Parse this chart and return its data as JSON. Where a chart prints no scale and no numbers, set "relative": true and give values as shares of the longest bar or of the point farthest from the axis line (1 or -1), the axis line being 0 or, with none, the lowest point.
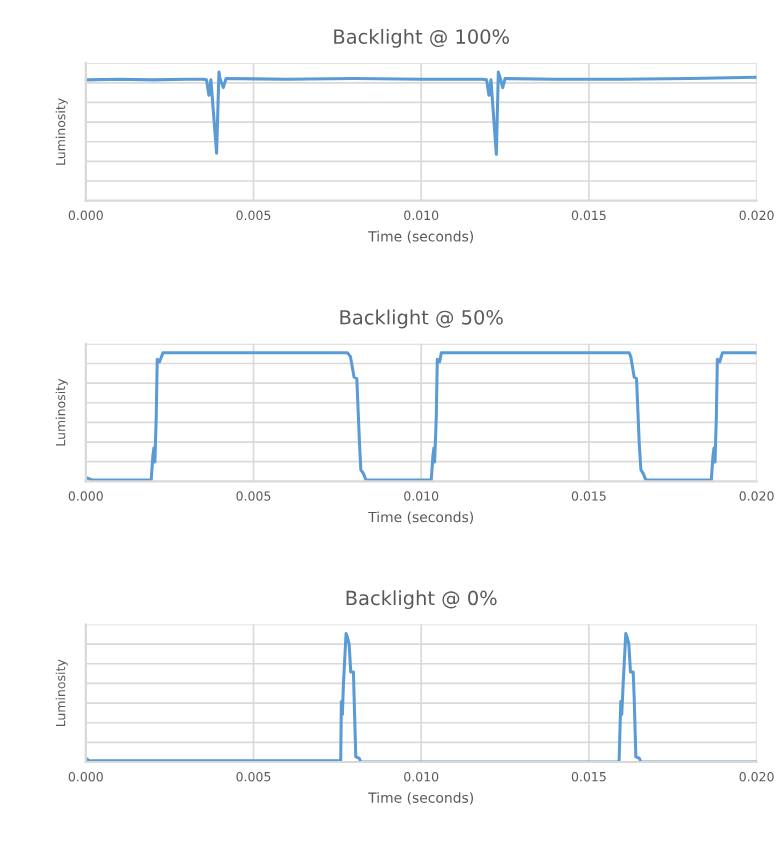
{
  "chart_data": [
    {
      "type": "line",
      "title": "Backlight @ 100%",
      "xlabel": "Time (seconds)",
      "ylabel": "Luminosity",
      "relative": true,
      "grid": true,
      "color": "#5b9bd5",
      "xlim": [
        0,
        0.02
      ],
      "xticks": [
        {
          "value": 0,
          "label": "0.000"
        },
        {
          "value": 0.005,
          "label": "0.005"
        },
        {
          "value": 0.01,
          "label": "0.010"
        },
        {
          "value": 0.015,
          "label": "0.015"
        },
        {
          "value": 0.02,
          "label": "0.020"
        }
      ],
      "x": [
        0,
        0.001,
        0.002,
        0.003,
        0.0035,
        0.0036,
        0.00367,
        0.00373,
        0.0039,
        0.00397,
        0.004,
        0.0041,
        0.00418,
        0.006,
        0.008,
        0.01,
        0.0118,
        0.01195,
        0.01202,
        0.01208,
        0.01224,
        0.0123,
        0.01236,
        0.01243,
        0.0125,
        0.014,
        0.016,
        0.018,
        0.02
      ],
      "values": [
        0.94,
        0.945,
        0.94,
        0.945,
        0.945,
        0.94,
        0.82,
        0.94,
        0.37,
        1.0,
        0.95,
        0.88,
        0.95,
        0.945,
        0.95,
        0.945,
        0.945,
        0.94,
        0.82,
        0.94,
        0.36,
        1.0,
        0.95,
        0.88,
        0.95,
        0.945,
        0.945,
        0.95,
        0.96
      ]
    },
    {
      "type": "line",
      "title": "Backlight @ 50%",
      "xlabel": "Time (seconds)",
      "ylabel": "Luminosity",
      "relative": true,
      "grid": true,
      "color": "#5b9bd5",
      "xlim": [
        0,
        0.02
      ],
      "xticks": [
        {
          "value": 0,
          "label": "0.000"
        },
        {
          "value": 0.005,
          "label": "0.005"
        },
        {
          "value": 0.01,
          "label": "0.010"
        },
        {
          "value": 0.015,
          "label": "0.015"
        },
        {
          "value": 0.02,
          "label": "0.020"
        }
      ],
      "x": [
        0,
        0.0002,
        0.001,
        0.00195,
        0.002,
        0.00203,
        0.00206,
        0.0021,
        0.00213,
        0.0022,
        0.0023,
        0.004,
        0.006,
        0.0078,
        0.00789,
        0.008,
        0.00808,
        0.00816,
        0.0082,
        0.00828,
        0.00835,
        0.0095,
        0.0103,
        0.01035,
        0.01038,
        0.0104,
        0.01045,
        0.01048,
        0.01055,
        0.0106,
        0.013,
        0.0162,
        0.01625,
        0.01635,
        0.01642,
        0.0165,
        0.01655,
        0.01662,
        0.0167,
        0.018,
        0.01865,
        0.0187,
        0.01873,
        0.01876,
        0.0188,
        0.01883,
        0.0189,
        0.01898,
        0.02
      ],
      "values": [
        0.03,
        0.01,
        0.01,
        0.01,
        0.2,
        0.26,
        0.15,
        0.5,
        0.95,
        0.93,
        1.0,
        1.0,
        1.0,
        1.0,
        0.97,
        0.81,
        0.8,
        0.3,
        0.09,
        0.06,
        0.01,
        0.01,
        0.01,
        0.2,
        0.26,
        0.15,
        0.5,
        0.95,
        0.93,
        1.0,
        1.0,
        1.0,
        0.97,
        0.81,
        0.8,
        0.3,
        0.09,
        0.06,
        0.01,
        0.01,
        0.01,
        0.2,
        0.26,
        0.15,
        0.5,
        0.95,
        0.93,
        1.0,
        1.0
      ]
    },
    {
      "type": "line",
      "title": "Backlight @ 0%",
      "xlabel": "Time (seconds)",
      "ylabel": "Luminosity",
      "relative": true,
      "grid": true,
      "color": "#5b9bd5",
      "xlim": [
        0,
        0.02
      ],
      "xticks": [
        {
          "value": 0,
          "label": "0.000"
        },
        {
          "value": 0.005,
          "label": "0.005"
        },
        {
          "value": 0.01,
          "label": "0.010"
        },
        {
          "value": 0.015,
          "label": "0.015"
        },
        {
          "value": 0.02,
          "label": "0.020"
        }
      ],
      "x": [
        0,
        0.0001,
        0.004,
        0.0076,
        0.00762,
        0.00765,
        0.00768,
        0.00776,
        0.0078,
        0.00785,
        0.0079,
        0.00798,
        0.008,
        0.00805,
        0.00815,
        0.0082,
        0.012,
        0.0159,
        0.01595,
        0.01598,
        0.01602,
        0.0161,
        0.01614,
        0.01619,
        0.01624,
        0.01632,
        0.01635,
        0.0164,
        0.0165,
        0.01655,
        0.02
      ],
      "values": [
        0.03,
        0.01,
        0.01,
        0.01,
        0.47,
        0.37,
        0.6,
        1.0,
        0.97,
        0.92,
        0.7,
        0.7,
        0.5,
        0.04,
        0.03,
        0.0,
        0.0,
        0.0,
        0.47,
        0.37,
        0.6,
        1.0,
        0.97,
        0.92,
        0.7,
        0.7,
        0.5,
        0.04,
        0.03,
        0.0,
        0.0
      ]
    }
  ]
}
